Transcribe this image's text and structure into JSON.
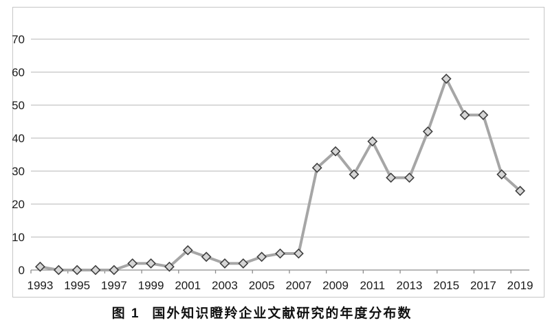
{
  "caption": {
    "figure_label": "图 1",
    "title": "国外知识瞪羚企业文献研究的年度分布数"
  },
  "chart_data": {
    "type": "line",
    "title": "图 1 国外知识瞪羚企业文献研究的年度分布数",
    "x": [
      1993,
      1994,
      1995,
      1996,
      1997,
      1998,
      1999,
      2000,
      2001,
      2002,
      2003,
      2004,
      2005,
      2006,
      2007,
      2008,
      2009,
      2010,
      2011,
      2012,
      2013,
      2014,
      2015,
      2016,
      2017,
      2018,
      2019
    ],
    "values": [
      1,
      0,
      0,
      0,
      0,
      2,
      2,
      1,
      6,
      4,
      2,
      2,
      4,
      5,
      5,
      31,
      36,
      29,
      39,
      28,
      28,
      42,
      58,
      47,
      47,
      29,
      24
    ],
    "xlabel": "",
    "ylabel": "",
    "ylim": [
      0,
      70
    ],
    "yticks": [
      0,
      10,
      20,
      30,
      40,
      50,
      60,
      70
    ],
    "xtick_labels": [
      "1993",
      "1995",
      "1997",
      "1999",
      "2001",
      "2003",
      "2005",
      "2007",
      "2009",
      "2011",
      "2013",
      "2015",
      "2017",
      "2019"
    ],
    "xtick_every": 2,
    "grid": "horizontal",
    "legend": "none",
    "marker": "diamond",
    "colors": {
      "line": "#a6a6a6",
      "marker_fill": "#d6d6d6",
      "marker_stroke": "#3f3f3f",
      "gridline": "#b5b5b5",
      "axis": "#8c8c8c",
      "tick_label": "#1a1a1a",
      "frame_border": "#c6c6c6",
      "background": "#ffffff"
    }
  }
}
